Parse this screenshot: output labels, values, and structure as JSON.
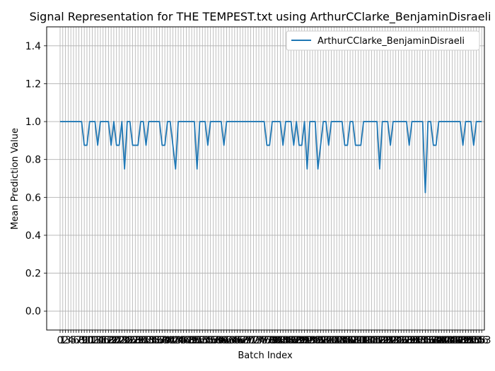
{
  "chart_data": {
    "type": "line",
    "title": "Signal Representation for THE TEMPEST.txt using ArthurCClarke_BenjaminDisraeli",
    "xlabel": "Batch Index",
    "ylabel": "Mean Prediction Value",
    "xlim": [
      -5,
      158
    ],
    "ylim": [
      -0.1,
      1.5
    ],
    "yticks": [
      0.0,
      0.2,
      0.4,
      0.6,
      0.8,
      1.0,
      1.2,
      1.4
    ],
    "ytick_labels": [
      "0.0",
      "0.2",
      "0.4",
      "0.6",
      "0.8",
      "1.0",
      "1.2",
      "1.4"
    ],
    "xtick_first_label": "0",
    "xtick_last_label": "153",
    "grid": true,
    "legend_position": "top-right",
    "series": [
      {
        "name": "ArthurCClarke_BenjaminDisraeli",
        "color": "#1f77b4",
        "x_start": 0,
        "values": [
          1.0,
          1.0,
          1.0,
          1.0,
          1.0,
          1.0,
          1.0,
          1.0,
          1.0,
          0.875,
          0.875,
          1.0,
          1.0,
          1.0,
          0.875,
          1.0,
          1.0,
          1.0,
          1.0,
          0.875,
          1.0,
          0.875,
          0.875,
          1.0,
          0.75,
          1.0,
          1.0,
          0.875,
          0.875,
          0.875,
          1.0,
          1.0,
          0.875,
          1.0,
          1.0,
          1.0,
          1.0,
          1.0,
          0.875,
          0.875,
          1.0,
          1.0,
          0.875,
          0.75,
          1.0,
          1.0,
          1.0,
          1.0,
          1.0,
          1.0,
          1.0,
          0.75,
          1.0,
          1.0,
          1.0,
          0.875,
          1.0,
          1.0,
          1.0,
          1.0,
          1.0,
          0.875,
          1.0,
          1.0,
          1.0,
          1.0,
          1.0,
          1.0,
          1.0,
          1.0,
          1.0,
          1.0,
          1.0,
          1.0,
          1.0,
          1.0,
          1.0,
          0.875,
          0.875,
          1.0,
          1.0,
          1.0,
          1.0,
          0.875,
          1.0,
          1.0,
          1.0,
          0.875,
          1.0,
          0.875,
          0.875,
          1.0,
          0.75,
          1.0,
          1.0,
          1.0,
          0.75,
          0.875,
          1.0,
          1.0,
          0.875,
          1.0,
          1.0,
          1.0,
          1.0,
          1.0,
          0.875,
          0.875,
          1.0,
          1.0,
          0.875,
          0.875,
          0.875,
          1.0,
          1.0,
          1.0,
          1.0,
          1.0,
          1.0,
          0.75,
          1.0,
          1.0,
          1.0,
          0.875,
          1.0,
          1.0,
          1.0,
          1.0,
          1.0,
          1.0,
          0.875,
          1.0,
          1.0,
          1.0,
          1.0,
          1.0,
          0.625,
          1.0,
          1.0,
          0.875,
          0.875,
          1.0,
          1.0,
          1.0,
          1.0,
          1.0,
          1.0,
          1.0,
          1.0,
          1.0,
          0.875,
          1.0,
          1.0,
          1.0,
          0.875,
          1.0,
          1.0,
          1.0
        ]
      }
    ]
  }
}
